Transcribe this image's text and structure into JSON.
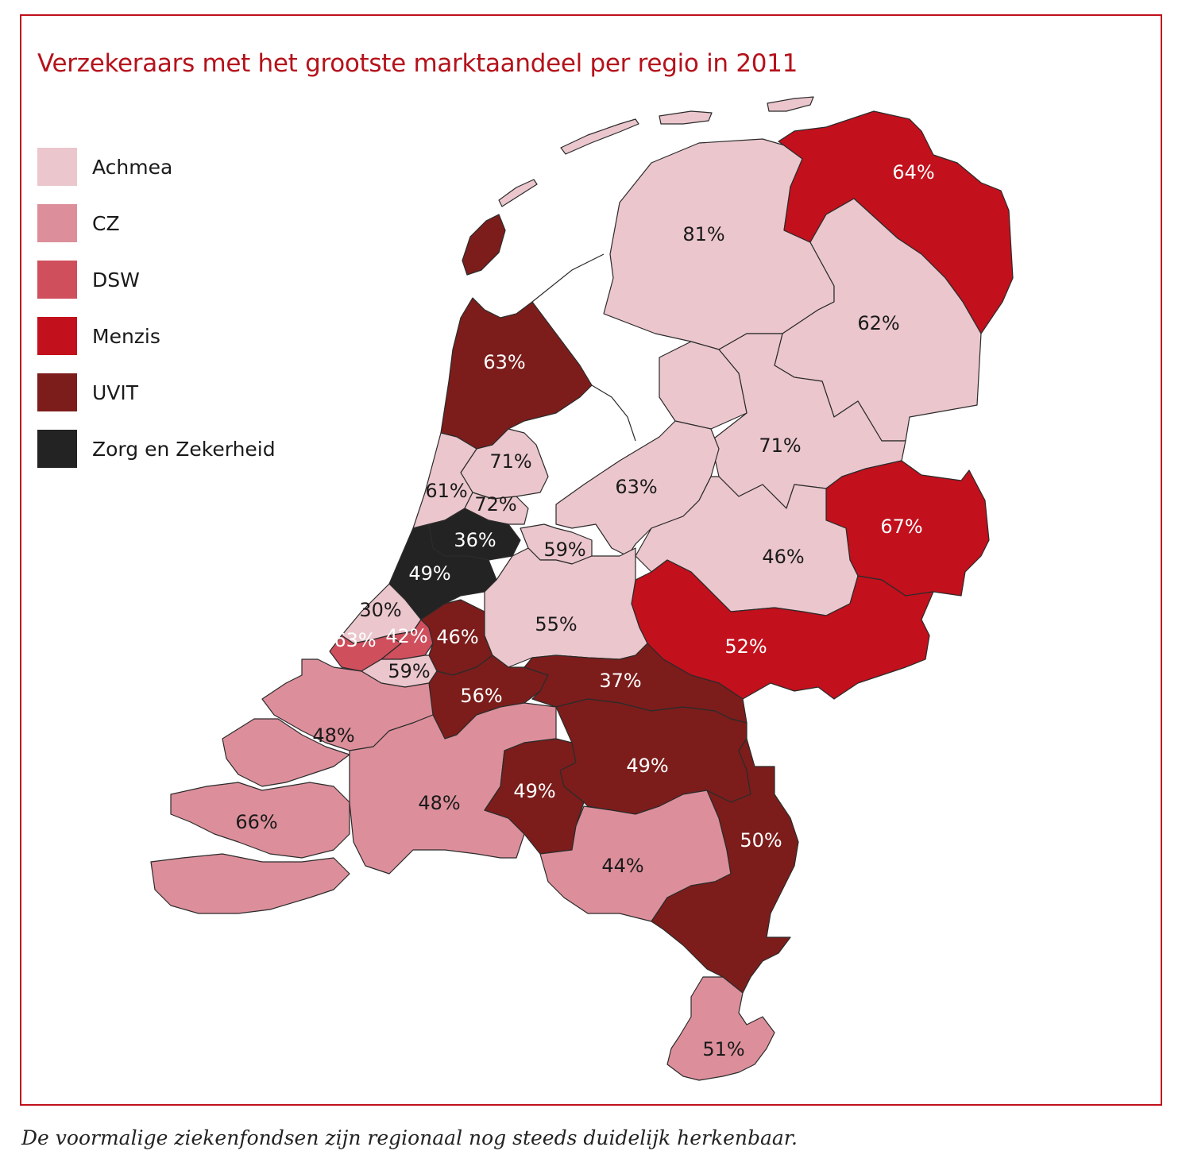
{
  "title": "Verzekeraars met het grootste marktaandeel per regio in 2011",
  "caption": "De voormalige ziekenfondsen zijn regionaal nog steeds duidelijk herkenbaar.",
  "legend": [
    {
      "id": "achmea",
      "label": "Achmea",
      "color": "#ebc6cd"
    },
    {
      "id": "cz",
      "label": "CZ",
      "color": "#dc8f9b"
    },
    {
      "id": "dsw",
      "label": "DSW",
      "color": "#cf4f5d"
    },
    {
      "id": "menzis",
      "label": "Menzis",
      "color": "#c2101c"
    },
    {
      "id": "uvit",
      "label": "UVIT",
      "color": "#7c1d1b"
    },
    {
      "id": "zez",
      "label": "Zorg en Zekerheid",
      "color": "#232323"
    }
  ],
  "regions": [
    {
      "id": "friesland",
      "insurer": "achmea",
      "share": "81%"
    },
    {
      "id": "groningen",
      "insurer": "menzis",
      "share": "64%"
    },
    {
      "id": "drenthe",
      "insurer": "achmea",
      "share": "62%"
    },
    {
      "id": "overijssel-west",
      "insurer": "achmea",
      "share": "71%"
    },
    {
      "id": "twente",
      "insurer": "menzis",
      "share": "67%"
    },
    {
      "id": "flevoland",
      "insurer": "achmea",
      "share": "63%"
    },
    {
      "id": "gelderland-noord",
      "insurer": "achmea",
      "share": "46%"
    },
    {
      "id": "achterhoek",
      "insurer": "menzis",
      "share": "52%"
    },
    {
      "id": "noord-holland-noord",
      "insurer": "uvit",
      "share": "63%"
    },
    {
      "id": "zaanstreek",
      "insurer": "achmea",
      "share": "71%"
    },
    {
      "id": "kennemerland",
      "insurer": "achmea",
      "share": "61%"
    },
    {
      "id": "amsterdam",
      "insurer": "achmea",
      "share": "72%"
    },
    {
      "id": "amstelland",
      "insurer": "zez",
      "share": "36%"
    },
    {
      "id": "leiden",
      "insurer": "zez",
      "share": "49%"
    },
    {
      "id": "gooi",
      "insurer": "achmea",
      "share": "59%"
    },
    {
      "id": "den-haag",
      "insurer": "achmea",
      "share": "30%"
    },
    {
      "id": "delft",
      "insurer": "dsw",
      "share": "63%"
    },
    {
      "id": "zoetermeer",
      "insurer": "dsw",
      "share": "42%"
    },
    {
      "id": "gouda",
      "insurer": "uvit",
      "share": "46%"
    },
    {
      "id": "utrecht",
      "insurer": "achmea",
      "share": "55%"
    },
    {
      "id": "rotterdam",
      "insurer": "achmea",
      "share": "59%"
    },
    {
      "id": "drechtsteden",
      "insurer": "uvit",
      "share": "56%"
    },
    {
      "id": "rivierenland",
      "insurer": "uvit",
      "share": "37%"
    },
    {
      "id": "zuid-holland-eilanden",
      "insurer": "cz",
      "share": "48%"
    },
    {
      "id": "zeeland",
      "insurer": "cz",
      "share": "66%"
    },
    {
      "id": "west-brabant",
      "insurer": "cz",
      "share": "48%"
    },
    {
      "id": "den-bosch",
      "insurer": "uvit",
      "share": "49%"
    },
    {
      "id": "nijmegen",
      "insurer": "uvit",
      "share": "49%"
    },
    {
      "id": "oost-brabant",
      "insurer": "cz",
      "share": "44%"
    },
    {
      "id": "noord-limburg",
      "insurer": "uvit",
      "share": "50%"
    },
    {
      "id": "zuid-limburg",
      "insurer": "cz",
      "share": "51%"
    }
  ]
}
